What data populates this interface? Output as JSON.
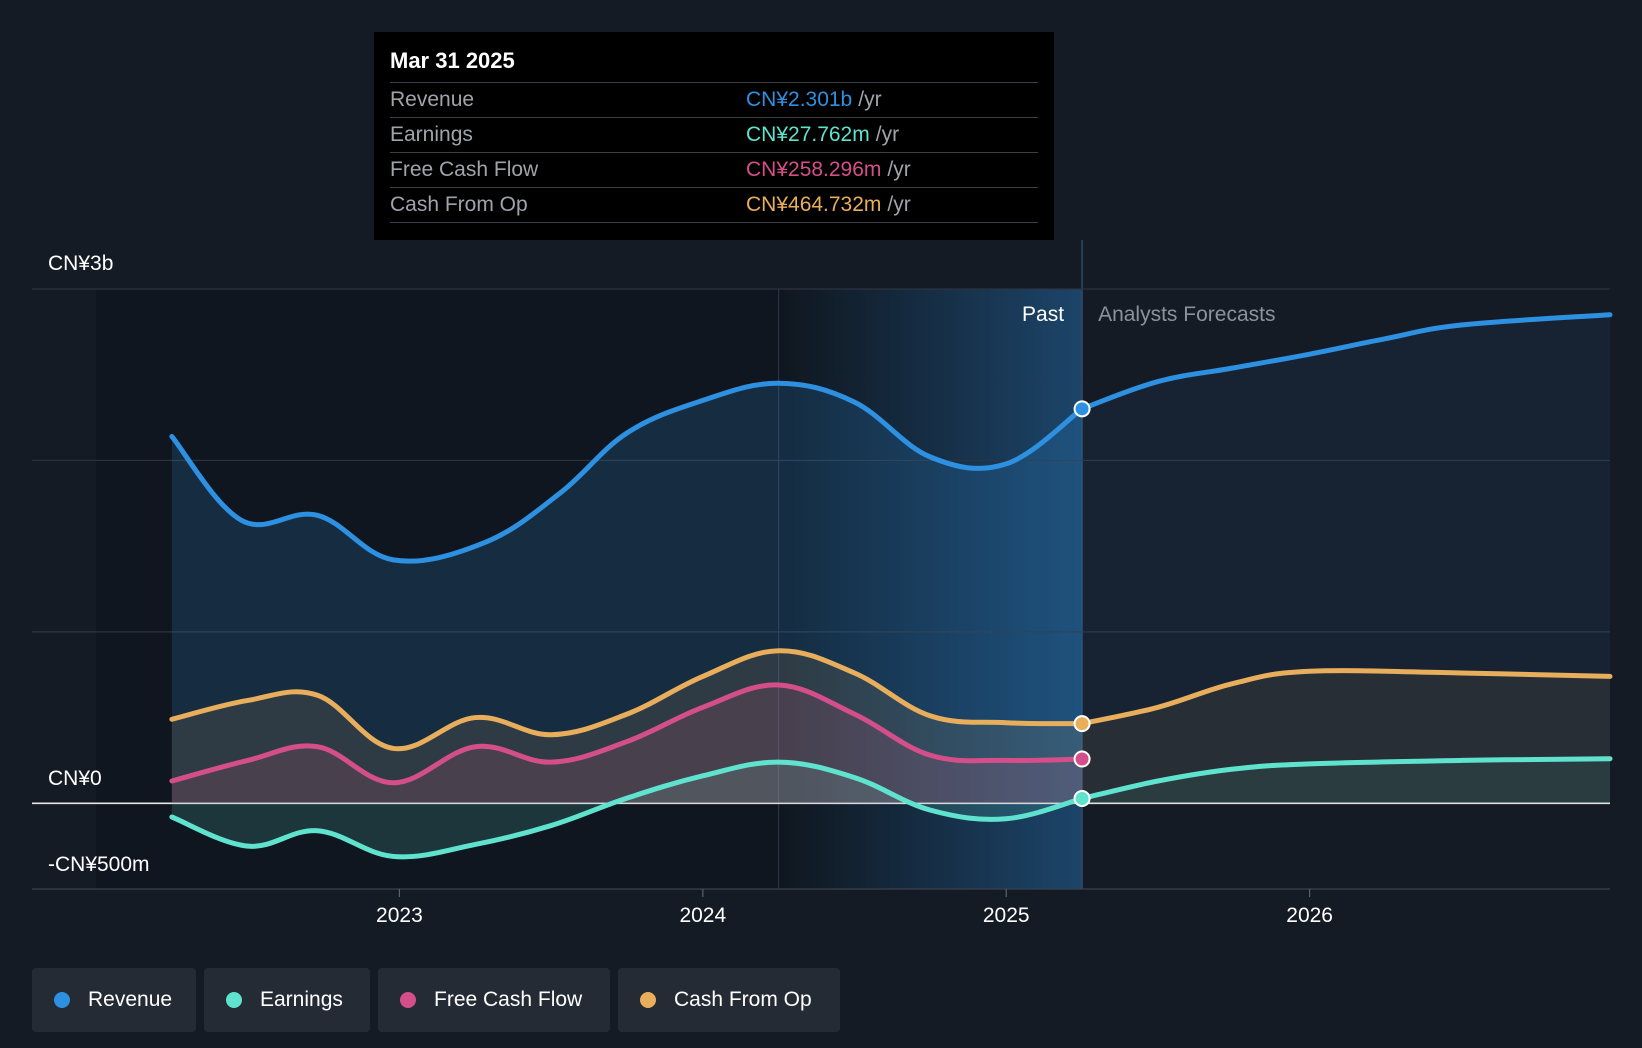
{
  "tooltip": {
    "date": "Mar 31 2025",
    "rows": [
      {
        "label": "Revenue",
        "value": "CN¥2.301b",
        "unit": "/yr",
        "color": "#2d90e0"
      },
      {
        "label": "Earnings",
        "value": "CN¥27.762m",
        "unit": "/yr",
        "color": "#5fe3cf"
      },
      {
        "label": "Free Cash Flow",
        "value": "CN¥258.296m",
        "unit": "/yr",
        "color": "#d44f89"
      },
      {
        "label": "Cash From Op",
        "value": "CN¥464.732m",
        "unit": "/yr",
        "color": "#e8ae5c"
      }
    ]
  },
  "legend": [
    {
      "label": "Revenue",
      "color": "#2d90e0"
    },
    {
      "label": "Earnings",
      "color": "#5fe3cf"
    },
    {
      "label": "Free Cash Flow",
      "color": "#d44f89"
    },
    {
      "label": "Cash From Op",
      "color": "#e8ae5c"
    }
  ],
  "chart_data": {
    "type": "area",
    "y_tick_labels": [
      "CN¥3b",
      "CN¥0",
      "-CN¥500m"
    ],
    "x_tick_labels": [
      "2023",
      "2024",
      "2025",
      "2026"
    ],
    "x_ticks": [
      2023,
      2024,
      2025,
      2026
    ],
    "ylim": [
      -500,
      3000
    ],
    "xlim": [
      2022.0,
      2026.99
    ],
    "divider_x": 2025.25,
    "highlight_x": 2024.25,
    "past_label": "Past",
    "forecast_label": "Analysts Forecasts",
    "series": [
      {
        "name": "Revenue",
        "color": "#2d90e0",
        "past": [
          [
            2022.25,
            2140
          ],
          [
            2022.48,
            1650
          ],
          [
            2022.73,
            1680
          ],
          [
            2022.98,
            1420
          ],
          [
            2023.28,
            1520
          ],
          [
            2023.53,
            1810
          ],
          [
            2023.75,
            2160
          ],
          [
            2024.0,
            2350
          ],
          [
            2024.25,
            2450
          ],
          [
            2024.5,
            2340
          ],
          [
            2024.75,
            2020
          ],
          [
            2025.0,
            1980
          ],
          [
            2025.25,
            2301
          ]
        ],
        "forecast": [
          [
            2025.25,
            2301
          ],
          [
            2025.5,
            2460
          ],
          [
            2025.75,
            2540
          ],
          [
            2026.0,
            2620
          ],
          [
            2026.25,
            2710
          ],
          [
            2026.5,
            2790
          ],
          [
            2026.99,
            2850
          ]
        ]
      },
      {
        "name": "Earnings",
        "color": "#5fe3cf",
        "past": [
          [
            2022.25,
            -80
          ],
          [
            2022.5,
            -250
          ],
          [
            2022.73,
            -160
          ],
          [
            2022.98,
            -310
          ],
          [
            2023.25,
            -240
          ],
          [
            2023.5,
            -130
          ],
          [
            2023.75,
            30
          ],
          [
            2024.0,
            160
          ],
          [
            2024.25,
            240
          ],
          [
            2024.5,
            150
          ],
          [
            2024.75,
            -40
          ],
          [
            2025.0,
            -90
          ],
          [
            2025.25,
            27.762
          ]
        ],
        "forecast": [
          [
            2025.25,
            27.762
          ],
          [
            2025.5,
            130
          ],
          [
            2025.75,
            200
          ],
          [
            2026.0,
            230
          ],
          [
            2026.5,
            250
          ],
          [
            2026.99,
            260
          ]
        ]
      },
      {
        "name": "Free Cash Flow",
        "color": "#d44f89",
        "past": [
          [
            2022.25,
            130
          ],
          [
            2022.5,
            250
          ],
          [
            2022.73,
            330
          ],
          [
            2022.98,
            120
          ],
          [
            2023.25,
            330
          ],
          [
            2023.5,
            240
          ],
          [
            2023.75,
            360
          ],
          [
            2024.0,
            560
          ],
          [
            2024.25,
            690
          ],
          [
            2024.5,
            520
          ],
          [
            2024.75,
            280
          ],
          [
            2025.0,
            250
          ],
          [
            2025.25,
            258.296
          ]
        ]
      },
      {
        "name": "Cash From Op",
        "color": "#e8ae5c",
        "past": [
          [
            2022.25,
            490
          ],
          [
            2022.5,
            600
          ],
          [
            2022.73,
            630
          ],
          [
            2022.98,
            320
          ],
          [
            2023.25,
            500
          ],
          [
            2023.5,
            400
          ],
          [
            2023.75,
            520
          ],
          [
            2024.0,
            740
          ],
          [
            2024.25,
            890
          ],
          [
            2024.5,
            760
          ],
          [
            2024.75,
            510
          ],
          [
            2025.0,
            470
          ],
          [
            2025.25,
            464.732
          ]
        ],
        "forecast": [
          [
            2025.25,
            464.732
          ],
          [
            2025.5,
            560
          ],
          [
            2025.75,
            700
          ],
          [
            2026.0,
            770
          ],
          [
            2026.5,
            760
          ],
          [
            2026.99,
            740
          ]
        ]
      }
    ]
  }
}
